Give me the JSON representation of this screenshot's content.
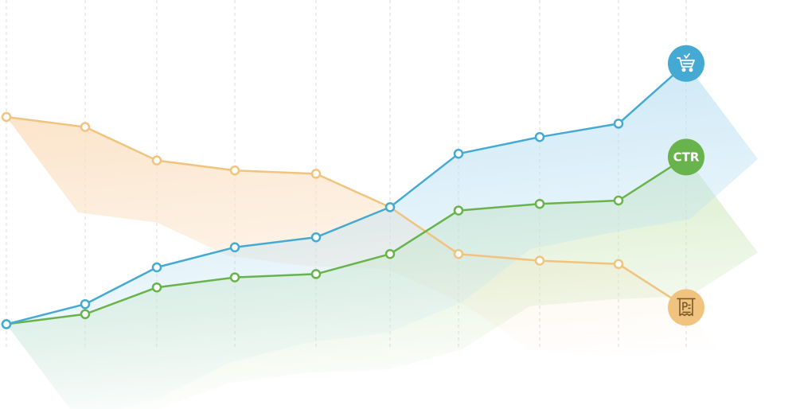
{
  "chart_data": {
    "type": "line",
    "title": "",
    "xlabel": "",
    "ylabel": "",
    "x": [
      1,
      2,
      3,
      4,
      5,
      6,
      7,
      8,
      9,
      10
    ],
    "ylim": [
      0,
      100
    ],
    "grid": true,
    "series": [
      {
        "key": "orders",
        "color": "#45aad3",
        "fill": "#bfe2f3",
        "badge_icon": "cart-icon",
        "values": [
          3,
          9,
          20,
          26,
          29,
          38,
          54,
          59,
          63,
          81
        ]
      },
      {
        "key": "ctr",
        "name": "CTR",
        "color": "#69b34c",
        "fill": "#cfe8bd",
        "badge_icon": "",
        "values": [
          3,
          6,
          14,
          17,
          18,
          24,
          37,
          39,
          40,
          53
        ]
      },
      {
        "key": "cost",
        "color": "#f0c47e",
        "fill": "#fbe3c8",
        "badge_icon": "receipt-icon",
        "values": [
          65,
          62,
          52,
          49,
          48,
          38,
          24,
          22,
          21,
          8
        ]
      }
    ]
  }
}
